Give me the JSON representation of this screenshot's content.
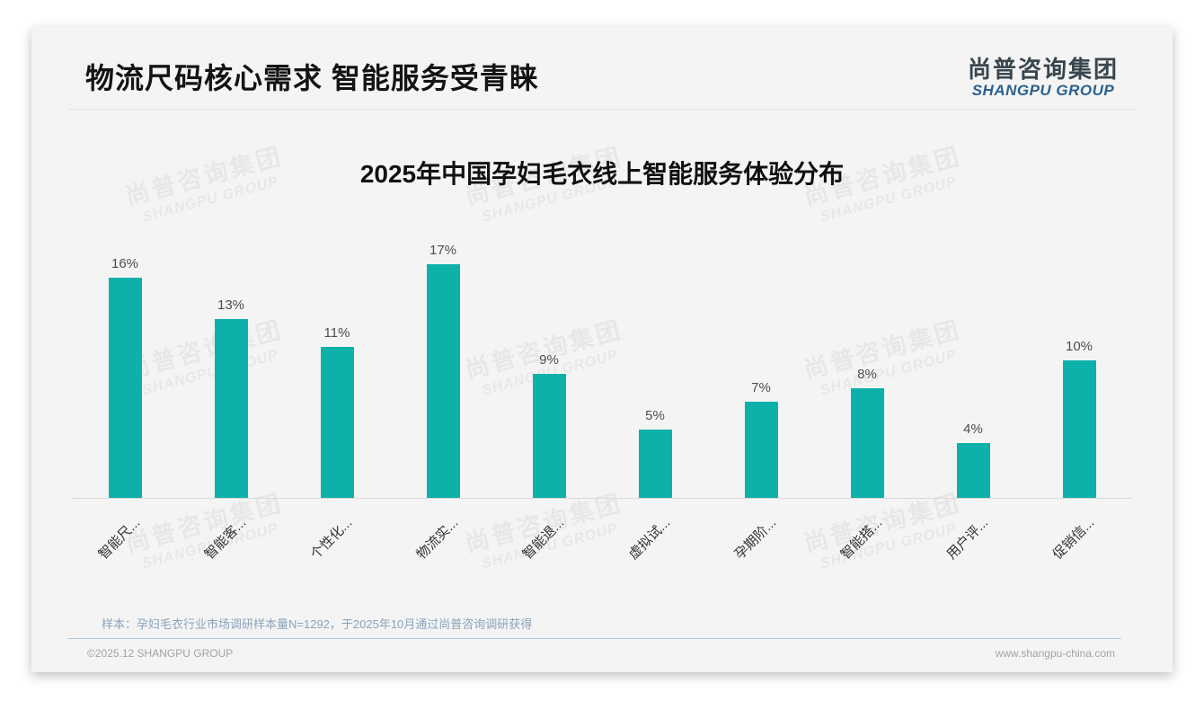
{
  "page": {
    "title": "物流尺码核心需求 智能服务受青睐",
    "logo": {
      "zh": "尚普咨询集团",
      "en": "SHANGPU GROUP"
    },
    "watermark": {
      "zh": "尚普咨询集团",
      "en": "SHANGPU GROUP"
    },
    "footer": {
      "note": "样本：孕妇毛衣行业市场调研样本量N=1292，于2025年10月通过尚普咨询调研获得",
      "copyright": "©2025.12 SHANGPU GROUP",
      "website": "www.shangpu-china.com"
    }
  },
  "chart_data": {
    "type": "bar",
    "title": "2025年中国孕妇毛衣线上智能服务体验分布",
    "categories": [
      "智能尺...",
      "智能客...",
      "个性化...",
      "物流实...",
      "智能退...",
      "虚拟试...",
      "孕期阶...",
      "智能搭...",
      "用户评...",
      "促销信..."
    ],
    "values": [
      16,
      13,
      11,
      17,
      9,
      5,
      7,
      8,
      4,
      10
    ],
    "unit": "%",
    "bar_color": "#0db1aa",
    "value_label_color": "#4d4d4d",
    "category_label_color": "#333333",
    "xlabel": "",
    "ylabel": "",
    "ylim": [
      0,
      17
    ],
    "grid": false,
    "legend": false,
    "category_label_rotation_deg": 45
  }
}
